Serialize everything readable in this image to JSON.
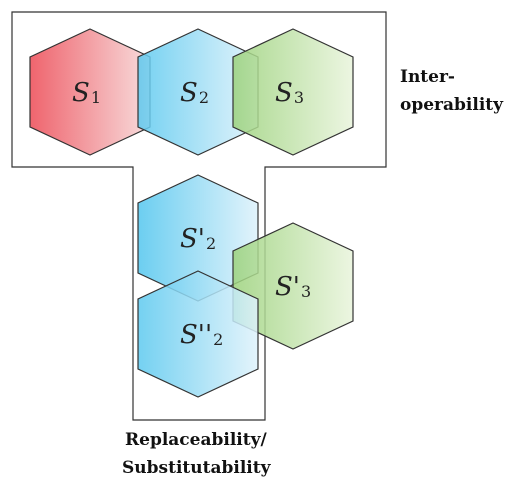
{
  "hexagons": [
    {
      "id": "s1",
      "base": "S",
      "prime": "",
      "sub": "1",
      "gradient": "red-grad"
    },
    {
      "id": "s2",
      "base": "S",
      "prime": "",
      "sub": "2",
      "gradient": "blue-grad"
    },
    {
      "id": "s3",
      "base": "S",
      "prime": "",
      "sub": "3",
      "gradient": "green-grad"
    },
    {
      "id": "s2p",
      "base": "S",
      "prime": "'",
      "sub": "2",
      "gradient": "blue-grad"
    },
    {
      "id": "s3p",
      "base": "S",
      "prime": "'",
      "sub": "3",
      "gradient": "green-grad"
    },
    {
      "id": "s2pp",
      "base": "S",
      "prime": "''",
      "sub": "2",
      "gradient": "blue-grad"
    }
  ],
  "labels": {
    "interop_line1": "Inter-",
    "interop_line2": "operability",
    "replace_line1": "Replaceability/",
    "replace_line2": "Substitutability"
  },
  "colors": {
    "red_light": "#f7dada",
    "red_dark": "#ee5c66",
    "blue_light": "#dff2fb",
    "blue_dark": "#5cc9ef",
    "green_light": "#e9f4dc",
    "green_dark": "#9cd27c",
    "stroke": "#333333"
  }
}
